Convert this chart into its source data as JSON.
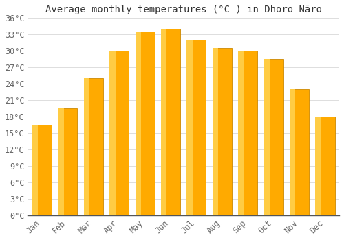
{
  "months": [
    "Jan",
    "Feb",
    "Mar",
    "Apr",
    "May",
    "Jun",
    "Jul",
    "Aug",
    "Sep",
    "Oct",
    "Nov",
    "Dec"
  ],
  "values": [
    16.5,
    19.5,
    25.0,
    30.0,
    33.5,
    34.0,
    32.0,
    30.5,
    30.0,
    28.5,
    23.0,
    18.0
  ],
  "bar_color_main": "#FFAA00",
  "bar_color_light": "#FFCC44",
  "bar_color_edge": "#CC8800",
  "title": "Average monthly temperatures (°C ) in Dhoro Nāro",
  "ylim_min": 0,
  "ylim_max": 36,
  "ytick_step": 3,
  "background_color": "#FFFFFF",
  "grid_color": "#DDDDDD",
  "title_fontsize": 10,
  "tick_fontsize": 8.5,
  "tick_color": "#666666"
}
